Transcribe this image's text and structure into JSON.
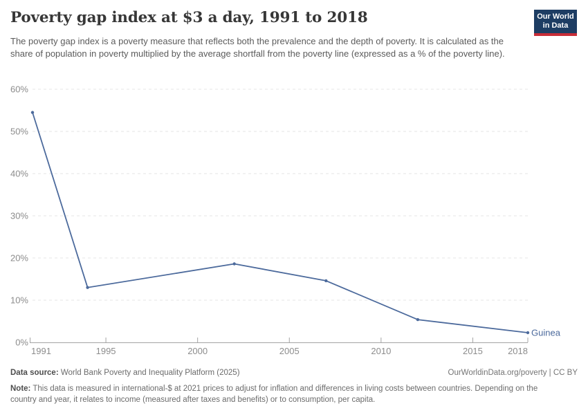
{
  "chart_data": {
    "type": "line",
    "title": "Poverty gap index at $3 a day, 1991 to 2018",
    "subtitle": "The poverty gap index is a poverty measure that reflects both the prevalence and the depth of poverty. It is calculated as the share of population in poverty multiplied by the average shortfall from the poverty line (expressed as a % of the poverty line).",
    "xlabel": "",
    "ylabel": "",
    "x": [
      1991,
      1994,
      2002,
      2007,
      2012,
      2018
    ],
    "series": [
      {
        "name": "Guinea",
        "values": [
          54.5,
          13.0,
          18.6,
          14.6,
          5.4,
          2.3
        ],
        "color": "#4c6a9c"
      }
    ],
    "xlim": [
      1991,
      2018
    ],
    "ylim": [
      0,
      60
    ],
    "x_ticks": [
      1991,
      1995,
      2000,
      2005,
      2010,
      2015,
      2018
    ],
    "y_ticks": [
      0,
      10,
      20,
      30,
      40,
      50,
      60
    ],
    "y_suffix": "%",
    "grid": "horizontal-dashed",
    "legend": "entity-label-at-line-end"
  },
  "logo": {
    "line1": "Our World",
    "line2": "in Data"
  },
  "footer": {
    "datasource_label": "Data source:",
    "datasource_text": " World Bank Poverty and Inequality Platform (2025)",
    "link_text": "OurWorldinData.org/poverty | CC BY",
    "note_label": "Note:",
    "note_text": " This data is measured in international-$ at 2021 prices to adjust for inflation and differences in living costs between countries. Depending on the country and year, it relates to income (measured after taxes and benefits) or to consumption, per capita."
  },
  "colors": {
    "series_blue": "#4c6a9c",
    "grid": "#e4e4e4",
    "axis": "#a3a3a3",
    "tick_text": "#8c8c8c",
    "logo_navy": "#1d3d63",
    "logo_red": "#c82d37"
  }
}
